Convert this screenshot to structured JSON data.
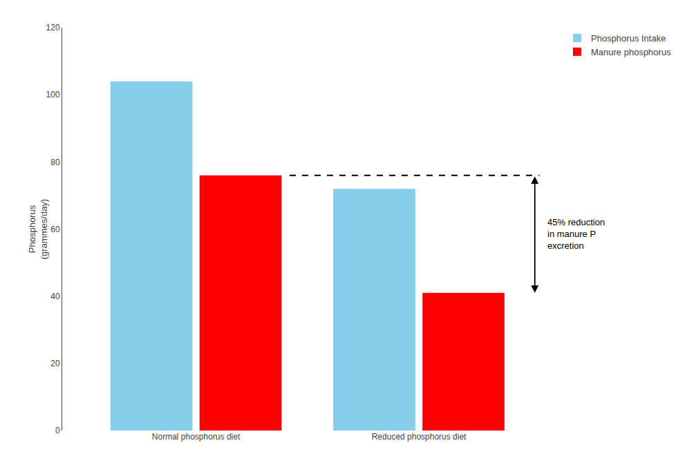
{
  "chart_data": {
    "type": "bar",
    "categories": [
      "Normal phosphorus diet",
      "Reduced phosphorus diet"
    ],
    "series": [
      {
        "name": "Phosphorus Intake",
        "color": "#87CEEB",
        "values": [
          104,
          72
        ]
      },
      {
        "name": "Manure phosphorus",
        "color": "#ff0000",
        "values": [
          76,
          41
        ]
      }
    ],
    "ylabel": "Phosphorus\n(grammes/day)",
    "ylim": [
      0,
      120
    ],
    "yticks": [
      0,
      20,
      40,
      60,
      80,
      100,
      120
    ],
    "grid": false,
    "legend": "upper right",
    "dashed_line_y": 76,
    "arrow": {
      "top": 76,
      "bottom": 41
    },
    "annotation": [
      "45% reduction",
      "in manure P",
      "excretion"
    ]
  }
}
